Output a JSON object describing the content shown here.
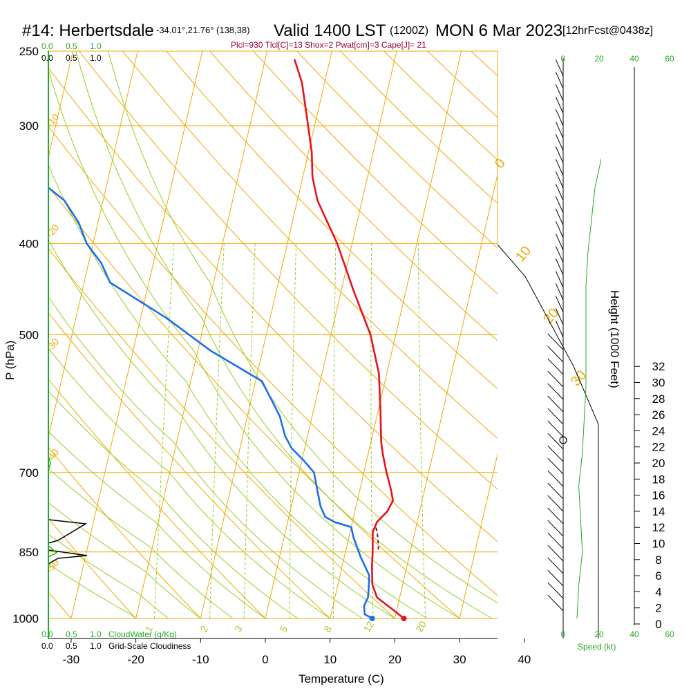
{
  "header": {
    "station": "#14: Herbertsdale",
    "coords": "-34.01°,21.76° (138,38)",
    "valid": "Valid 1400 LST",
    "utc": "(1200Z)",
    "date": "MON 6 Mar 2023",
    "forecast": "[12hrFcst@0438z]",
    "params": "Plcl=930 Tlcl[C]=13 Shox=2 Pwat[cm]=3 Cape[J]= 21"
  },
  "colors": {
    "isotherm": "#f0a800",
    "dry_adiabat": "#f0a800",
    "moist_adiabat": "#99cc22",
    "mixing_ratio": "#99cc22",
    "temperature": "#e8101c",
    "dewpoint": "#1a6ee8",
    "parcel": "#7a1030",
    "wind_speed": "#22aa22",
    "cloud": "#22aa22"
  },
  "scale_labels": {
    "top_green": [
      "0.0",
      "0.5",
      "1.0"
    ],
    "top_black": [
      "0.0",
      "0.5",
      "1.0"
    ],
    "bottom_green": [
      "0.0",
      "0.5",
      "1.0"
    ],
    "bottom_green_title": "CloudWater (g/Kg)",
    "bottom_black": [
      "0.0",
      "0.5",
      "1.0"
    ],
    "bottom_black_title": "Grid-Scale Cloudiness"
  },
  "wind_axis": {
    "top_labels": [
      "0",
      "20",
      "40",
      "60"
    ],
    "bottom_labels": [
      "0",
      "20",
      "40",
      "60"
    ],
    "title": "Speed (kt)"
  },
  "height_axis": {
    "title": "Height (1000 Feet)",
    "labels": [
      "0",
      "2",
      "4",
      "6",
      "8",
      "10",
      "12",
      "14",
      "16",
      "18",
      "20",
      "22",
      "24",
      "26",
      "28",
      "30",
      "32"
    ]
  },
  "chart_data": {
    "type": "line",
    "chart_kind": "skew-T log-P sounding",
    "xlabel": "Temperature (C)",
    "ylabel": "P (hPa)",
    "x_ticks": [
      -30,
      -20,
      -10,
      0,
      10,
      20,
      30,
      40
    ],
    "y_ticks": [
      250,
      300,
      400,
      500,
      700,
      850,
      1000
    ],
    "ylim": [
      250,
      1000
    ],
    "y_scale": "log",
    "grid": true,
    "isotherm_labels": [
      "30",
      "20",
      "10",
      "0",
      "-10",
      "-20",
      "-30",
      "-40",
      "-50"
    ],
    "mixing_ratio_labels": [
      "1",
      "2",
      "3",
      "5",
      "8",
      "12",
      "20"
    ],
    "series": [
      {
        "kind": "temperature",
        "points": [
          [
            21.4,
            1000
          ],
          [
            19.5,
            980
          ],
          [
            16.5,
            950
          ],
          [
            15.3,
            920
          ],
          [
            14.6,
            880
          ],
          [
            14.2,
            850
          ],
          [
            13.5,
            810
          ],
          [
            13.8,
            790
          ],
          [
            15.0,
            770
          ],
          [
            15.5,
            750
          ],
          [
            14.8,
            730
          ],
          [
            13.5,
            700
          ],
          [
            12.3,
            670
          ],
          [
            11.6,
            650
          ],
          [
            10.3,
            600
          ],
          [
            8.8,
            550
          ],
          [
            6.1,
            500
          ],
          [
            2.0,
            450
          ],
          [
            -2.3,
            400
          ],
          [
            -6.9,
            360
          ],
          [
            -8.5,
            340
          ],
          [
            -9.5,
            320
          ],
          [
            -11.0,
            300
          ],
          [
            -13.5,
            270
          ],
          [
            -15.5,
            255
          ]
        ]
      },
      {
        "kind": "dewpoint",
        "points": [
          [
            16.5,
            1000
          ],
          [
            15.2,
            990
          ],
          [
            14.8,
            970
          ],
          [
            15.1,
            950
          ],
          [
            14.9,
            930
          ],
          [
            14.5,
            900
          ],
          [
            12.5,
            860
          ],
          [
            10.7,
            820
          ],
          [
            10.0,
            800
          ],
          [
            7.2,
            790
          ],
          [
            5.6,
            780
          ],
          [
            4.5,
            760
          ],
          [
            3.6,
            735
          ],
          [
            2.3,
            700
          ],
          [
            0.3,
            680
          ],
          [
            -2.0,
            660
          ],
          [
            -3.5,
            640
          ],
          [
            -5.0,
            610
          ],
          [
            -9.0,
            560
          ],
          [
            -18.0,
            520
          ],
          [
            -26.0,
            480
          ],
          [
            -36.0,
            440
          ],
          [
            -38.0,
            420
          ],
          [
            -41.0,
            400
          ],
          [
            -43.0,
            380
          ],
          [
            -46.0,
            360
          ],
          [
            -50.0,
            345
          ],
          [
            -55.0,
            330
          ],
          [
            -62.0,
            305
          ],
          [
            -64.0,
            295
          ],
          [
            -65.5,
            280
          ],
          [
            -66.5,
            270
          ],
          [
            -67.5,
            255
          ]
        ]
      },
      {
        "kind": "parcel",
        "points": [
          [
            15.0,
            845
          ],
          [
            14.7,
            830
          ],
          [
            14.2,
            810
          ],
          [
            13.6,
            795
          ]
        ]
      }
    ],
    "wind_speed_profile_kt": [
      [
        0,
        0
      ],
      [
        2,
        1
      ],
      [
        4,
        3
      ],
      [
        6,
        2
      ],
      [
        8,
        1
      ],
      [
        10,
        3
      ],
      [
        12,
        4
      ],
      [
        14,
        5
      ],
      [
        16,
        5
      ],
      [
        18,
        5
      ],
      [
        20,
        5
      ],
      [
        22,
        6
      ],
      [
        24,
        8
      ],
      [
        26,
        10
      ],
      [
        28,
        14
      ],
      [
        30,
        18
      ],
      [
        32,
        22
      ],
      [
        33,
        24
      ]
    ]
  }
}
